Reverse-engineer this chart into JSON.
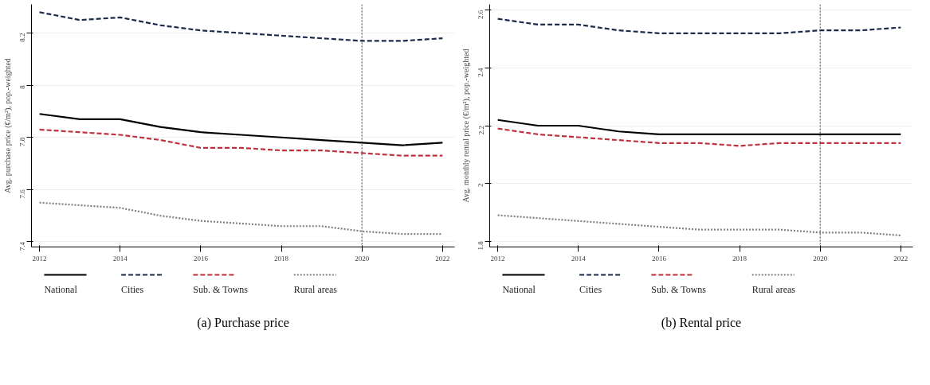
{
  "chart_data": [
    {
      "type": "line",
      "title": "(a) Purchase price",
      "ylabel": "Avg. purchase price (€/m²), pop.-weighted",
      "x": [
        2012,
        2013,
        2014,
        2015,
        2016,
        2017,
        2018,
        2019,
        2020,
        2021,
        2022
      ],
      "xlim": [
        2011.8,
        2022.3
      ],
      "xticks": [
        2012,
        2014,
        2016,
        2018,
        2020,
        2022
      ],
      "ylim": [
        7.38,
        8.31
      ],
      "yticks": [
        7.4,
        7.6,
        7.8,
        8,
        8.2
      ],
      "grid": "y",
      "legend": "bottom",
      "ref_lines": [
        {
          "axis": "x",
          "value": 2020,
          "color": "#333333",
          "line_style": "dotted"
        }
      ],
      "series": [
        {
          "name": "National",
          "color": "#000000",
          "line_style": "solid",
          "values": [
            7.89,
            7.87,
            7.87,
            7.84,
            7.82,
            7.81,
            7.8,
            7.79,
            7.78,
            7.77,
            7.78
          ]
        },
        {
          "name": "Cities",
          "color": "#1c2b4a",
          "line_style": "dashed",
          "values": [
            8.28,
            8.25,
            8.26,
            8.23,
            8.21,
            8.2,
            8.19,
            8.18,
            8.17,
            8.17,
            8.18
          ]
        },
        {
          "name": "Sub. & Towns",
          "color": "#c0303f",
          "line_style": "dashed",
          "values": [
            7.83,
            7.82,
            7.81,
            7.79,
            7.76,
            7.76,
            7.75,
            7.75,
            7.74,
            7.73,
            7.73
          ]
        },
        {
          "name": "Rural areas",
          "color": "#808080",
          "line_style": "dotted",
          "values": [
            7.55,
            7.54,
            7.53,
            7.5,
            7.48,
            7.47,
            7.46,
            7.46,
            7.44,
            7.43,
            7.43
          ]
        }
      ]
    },
    {
      "type": "line",
      "title": "(b) Rental price",
      "ylabel": "Avg. monthly rental price (€/m²), pop.-weighted",
      "x": [
        2012,
        2013,
        2014,
        2015,
        2016,
        2017,
        2018,
        2019,
        2020,
        2021,
        2022
      ],
      "xlim": [
        2011.8,
        2022.3
      ],
      "xticks": [
        2012,
        2014,
        2016,
        2018,
        2020,
        2022
      ],
      "ylim": [
        1.78,
        2.62
      ],
      "yticks": [
        1.8,
        2,
        2.2,
        2.4,
        2.6
      ],
      "grid": "y",
      "legend": "bottom",
      "ref_lines": [
        {
          "axis": "x",
          "value": 2020,
          "color": "#333333",
          "line_style": "dotted"
        }
      ],
      "series": [
        {
          "name": "National",
          "color": "#000000",
          "line_style": "solid",
          "values": [
            2.22,
            2.2,
            2.2,
            2.18,
            2.17,
            2.17,
            2.17,
            2.17,
            2.17,
            2.17,
            2.17
          ]
        },
        {
          "name": "Cities",
          "color": "#1c2b4a",
          "line_style": "dashed",
          "values": [
            2.57,
            2.55,
            2.55,
            2.53,
            2.52,
            2.52,
            2.52,
            2.52,
            2.53,
            2.53,
            2.54
          ]
        },
        {
          "name": "Sub. & Towns",
          "color": "#c0303f",
          "line_style": "dashed",
          "values": [
            2.19,
            2.17,
            2.16,
            2.15,
            2.14,
            2.14,
            2.13,
            2.14,
            2.14,
            2.14,
            2.14
          ]
        },
        {
          "name": "Rural areas",
          "color": "#808080",
          "line_style": "dotted",
          "values": [
            1.89,
            1.88,
            1.87,
            1.86,
            1.85,
            1.84,
            1.84,
            1.84,
            1.83,
            1.83,
            1.82
          ]
        }
      ]
    }
  ]
}
